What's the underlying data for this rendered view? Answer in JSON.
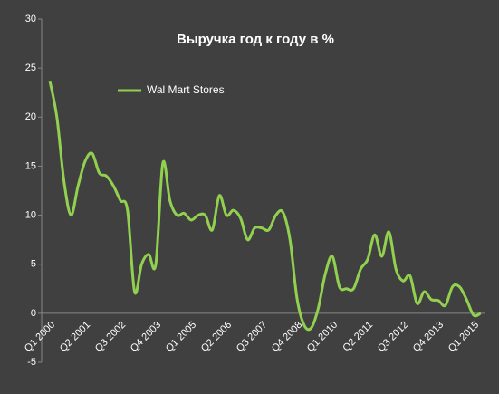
{
  "chart_data": {
    "type": "line",
    "title": "Выручка год к году в %",
    "categories": [
      "Q1 2000",
      null,
      null,
      null,
      null,
      "Q2 2001",
      null,
      null,
      null,
      null,
      "Q3 2002",
      null,
      null,
      null,
      null,
      "Q4 2003",
      null,
      null,
      null,
      null,
      "Q1 2005",
      null,
      null,
      null,
      null,
      "Q2 2006",
      null,
      null,
      null,
      null,
      "Q3 2007",
      null,
      null,
      null,
      null,
      "Q4 2008",
      null,
      null,
      null,
      null,
      "Q1 2010",
      null,
      null,
      null,
      null,
      "Q2 2011",
      null,
      null,
      null,
      null,
      "Q3 2012",
      null,
      null,
      null,
      null,
      "Q4 2013",
      null,
      null,
      null,
      null,
      "Q1 2015",
      null
    ],
    "series": [
      {
        "name": "Wal Mart Stores",
        "color": "#92d050",
        "values": [
          23.7,
          20,
          13.5,
          10,
          13,
          15.5,
          16.3,
          14.3,
          14,
          13,
          11.5,
          10.5,
          2.2,
          5,
          6,
          5,
          15.3,
          11.5,
          10,
          10.2,
          9.5,
          10,
          10,
          8.5,
          12,
          10,
          10.5,
          9.7,
          7.5,
          8.7,
          8.7,
          8.5,
          10,
          10.3,
          7.5,
          1.5,
          -1.2,
          -1.5,
          0.5,
          4,
          5.8,
          2.7,
          2.5,
          2.5,
          4.5,
          5.5,
          8,
          5.8,
          8.3,
          4.5,
          3.3,
          3.8,
          1,
          2.2,
          1.4,
          1.3,
          0.8,
          2.7,
          2.7,
          1.4,
          -0.2,
          0
        ]
      }
    ],
    "ylim": [
      -5,
      30
    ],
    "yticks": [
      -5,
      0,
      5,
      10,
      15,
      20,
      25,
      30
    ],
    "grid": false,
    "legend": "top-left"
  }
}
